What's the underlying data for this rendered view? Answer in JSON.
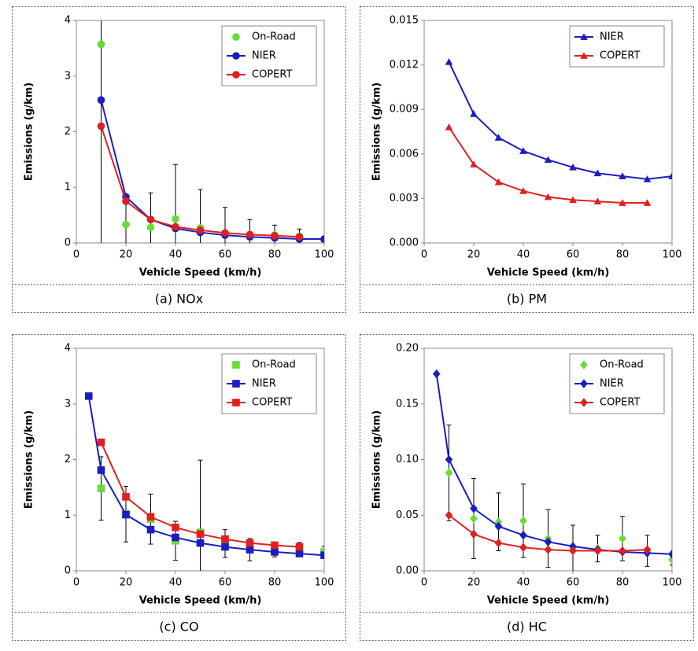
{
  "chart_data": [
    {
      "type": "line",
      "caption": "(a)  NOx",
      "xlabel": "Vehicle Speed (km/h)",
      "ylabel": "Emissions (g/km)",
      "marker": "circle",
      "legend": "upper right",
      "xlim": [
        0,
        100
      ],
      "xticks": [
        0,
        20,
        40,
        60,
        80,
        100
      ],
      "ylim": [
        0,
        4
      ],
      "yticks": [
        0,
        1,
        2,
        3,
        4
      ],
      "series": [
        {
          "name": "On-Road",
          "color": "#66dd33",
          "line": false,
          "x": [
            10,
            20,
            30,
            40,
            50,
            60,
            70,
            80,
            90,
            100
          ],
          "values": [
            3.57,
            0.33,
            0.28,
            0.43,
            0.27,
            0.18,
            0.15,
            0.14,
            0.12,
            0.04
          ],
          "errors": [
            3.6,
            0.5,
            0.62,
            0.98,
            0.69,
            0.46,
            0.27,
            0.18,
            0.13,
            0.06
          ]
        },
        {
          "name": "NIER",
          "color": "#1c1cc0",
          "x": [
            10,
            20,
            30,
            40,
            50,
            60,
            70,
            80,
            90,
            100
          ],
          "values": [
            2.57,
            0.83,
            0.42,
            0.26,
            0.19,
            0.14,
            0.11,
            0.09,
            0.07,
            0.07
          ]
        },
        {
          "name": "COPERT",
          "color": "#e02020",
          "x": [
            10,
            20,
            30,
            40,
            50,
            60,
            70,
            80,
            90
          ],
          "values": [
            2.1,
            0.75,
            0.42,
            0.29,
            0.23,
            0.18,
            0.15,
            0.13,
            0.11
          ]
        }
      ]
    },
    {
      "type": "line",
      "caption": "(b)  PM",
      "xlabel": "Vehicle Speed (km/h)",
      "ylabel": "Emissions (g/km)",
      "marker": "triangle",
      "legend": "upper right",
      "xlim": [
        0,
        100
      ],
      "xticks": [
        0,
        20,
        40,
        60,
        80,
        100
      ],
      "ylim": [
        0,
        0.015
      ],
      "yticks": [
        {
          "value": 0,
          "label": "0.000"
        },
        0.003,
        0.006,
        0.009,
        0.012,
        0.015
      ],
      "series": [
        {
          "name": "NIER",
          "color": "#1c1cc0",
          "x": [
            10,
            20,
            30,
            40,
            50,
            60,
            70,
            80,
            90,
            100
          ],
          "values": [
            0.0122,
            0.0087,
            0.0071,
            0.0062,
            0.0056,
            0.0051,
            0.0047,
            0.0045,
            0.0043,
            0.0045
          ]
        },
        {
          "name": "COPERT",
          "color": "#e02020",
          "x": [
            10,
            20,
            30,
            40,
            50,
            60,
            70,
            80,
            90
          ],
          "values": [
            0.0078,
            0.0053,
            0.0041,
            0.0035,
            0.0031,
            0.0029,
            0.0028,
            0.0027,
            0.0027
          ]
        }
      ]
    },
    {
      "type": "line",
      "caption": "(c)  CO",
      "xlabel": "Vehicle Speed (km/h)",
      "ylabel": "Emissions (g/km)",
      "marker": "square",
      "legend": "upper right",
      "xlim": [
        0,
        100
      ],
      "xticks": [
        0,
        20,
        40,
        60,
        80,
        100
      ],
      "ylim": [
        0,
        4
      ],
      "yticks": [
        0,
        1,
        2,
        3,
        4
      ],
      "series": [
        {
          "name": "On-Road",
          "color": "#66dd33",
          "line": false,
          "x": [
            10,
            20,
            30,
            40,
            50,
            60,
            70,
            80,
            90,
            100
          ],
          "values": [
            1.48,
            1.02,
            0.93,
            0.54,
            0.69,
            0.49,
            0.38,
            0.37,
            0.39,
            0.34
          ],
          "errors": [
            0.57,
            0.5,
            0.45,
            0.35,
            1.3,
            0.25,
            0.2,
            0.12,
            0.12,
            0.1
          ]
        },
        {
          "name": "NIER",
          "color": "#1c1cc0",
          "x": [
            5,
            10,
            20,
            30,
            40,
            50,
            60,
            70,
            80,
            90,
            100
          ],
          "values": [
            3.14,
            1.81,
            1.01,
            0.74,
            0.6,
            0.5,
            0.43,
            0.38,
            0.34,
            0.31,
            0.28
          ]
        },
        {
          "name": "COPERT",
          "color": "#e02020",
          "x": [
            10,
            20,
            30,
            40,
            50,
            60,
            70,
            80,
            90
          ],
          "values": [
            2.31,
            1.33,
            0.97,
            0.78,
            0.66,
            0.57,
            0.5,
            0.46,
            0.43
          ]
        }
      ]
    },
    {
      "type": "line",
      "caption": "(d)  HC",
      "xlabel": "Vehicle Speed (km/h)",
      "ylabel": "Emissions (g/km)",
      "marker": "diamond",
      "legend": "upper right",
      "xlim": [
        0,
        100
      ],
      "xticks": [
        0,
        20,
        40,
        60,
        80,
        100
      ],
      "ylim": [
        0,
        0.2
      ],
      "yticks": [
        {
          "value": 0,
          "label": "0.00"
        },
        0.05,
        {
          "value": 0.1,
          "label": "0.10"
        },
        0.15,
        {
          "value": 0.2,
          "label": "0.20"
        }
      ],
      "series": [
        {
          "name": "On-Road",
          "color": "#66dd33",
          "line": false,
          "x": [
            10,
            20,
            30,
            40,
            50,
            60,
            70,
            80,
            90,
            100
          ],
          "values": [
            0.088,
            0.047,
            0.044,
            0.045,
            0.029,
            0.02,
            0.02,
            0.029,
            0.018,
            0.01
          ],
          "errors": [
            0.043,
            0.036,
            0.026,
            0.033,
            0.026,
            0.021,
            0.012,
            0.02,
            0.014,
            0.005
          ]
        },
        {
          "name": "NIER",
          "color": "#1c1cc0",
          "x": [
            5,
            10,
            20,
            30,
            40,
            50,
            60,
            70,
            80,
            90,
            100
          ],
          "values": [
            0.177,
            0.1,
            0.056,
            0.04,
            0.032,
            0.026,
            0.022,
            0.019,
            0.017,
            0.016,
            0.015
          ]
        },
        {
          "name": "COPERT",
          "color": "#e02020",
          "x": [
            10,
            20,
            30,
            40,
            50,
            60,
            70,
            80,
            90
          ],
          "values": [
            0.05,
            0.033,
            0.025,
            0.021,
            0.019,
            0.018,
            0.018,
            0.018,
            0.019
          ]
        }
      ]
    }
  ]
}
